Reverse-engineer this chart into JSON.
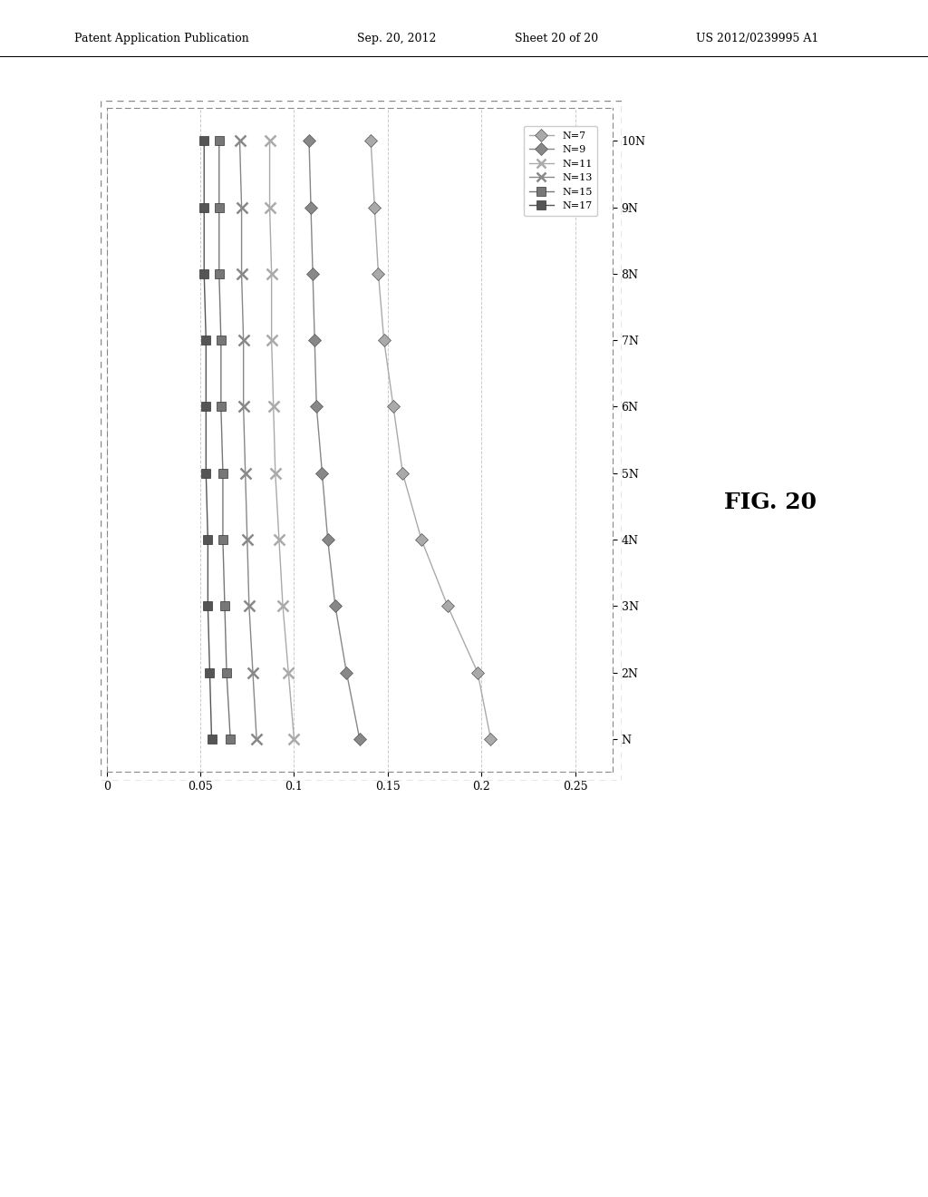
{
  "title_left": "Patent Application Publication",
  "title_date": "Sep. 20, 2012",
  "title_sheet": "Sheet 20 of 20",
  "title_patent": "US 2012/0239995 A1",
  "fig_label": "FIG. 20",
  "yticks": [
    0,
    0.05,
    0.1,
    0.15,
    0.2,
    0.25
  ],
  "ytick_labels": [
    "0",
    "0.05",
    "0.1",
    "0.15",
    "0.2",
    "0.25"
  ],
  "xtick_labels": [
    "N",
    "2N",
    "3N",
    "4N",
    "5N",
    "6N",
    "7N",
    "8N",
    "9N",
    "10N"
  ],
  "xtick_values": [
    1,
    2,
    3,
    4,
    5,
    6,
    7,
    8,
    9,
    10
  ],
  "series": [
    {
      "label": "N=7",
      "marker": "D",
      "color": "#888888",
      "data_x": [
        1,
        2,
        3,
        4,
        5,
        6,
        7,
        8,
        9,
        10
      ],
      "data_y": [
        0.205,
        0.198,
        0.182,
        0.168,
        0.158,
        0.153,
        0.148,
        0.145,
        0.143,
        0.141
      ]
    },
    {
      "label": "N=9",
      "marker": "D",
      "color": "#999999",
      "data_x": [
        1,
        2,
        3,
        4,
        5,
        6,
        7,
        8,
        9,
        10
      ],
      "data_y": [
        0.135,
        0.128,
        0.122,
        0.118,
        0.115,
        0.112,
        0.111,
        0.11,
        0.109,
        0.108
      ]
    },
    {
      "label": "N=11",
      "marker": "x",
      "color": "#aaaaaa",
      "data_x": [
        1,
        2,
        3,
        4,
        5,
        6,
        7,
        8,
        9,
        10
      ],
      "data_y": [
        0.1,
        0.097,
        0.094,
        0.092,
        0.09,
        0.089,
        0.088,
        0.088,
        0.087,
        0.087
      ]
    },
    {
      "label": "N=13",
      "marker": "x",
      "color": "#777777",
      "data_x": [
        1,
        2,
        3,
        4,
        5,
        6,
        7,
        8,
        9,
        10
      ],
      "data_y": [
        0.08,
        0.078,
        0.076,
        0.075,
        0.074,
        0.073,
        0.073,
        0.072,
        0.072,
        0.071
      ]
    },
    {
      "label": "N=15",
      "marker": "s",
      "color": "#666666",
      "data_x": [
        1,
        2,
        3,
        4,
        5,
        6,
        7,
        8,
        9,
        10
      ],
      "data_y": [
        0.066,
        0.064,
        0.063,
        0.062,
        0.062,
        0.061,
        0.061,
        0.06,
        0.06,
        0.06
      ]
    },
    {
      "label": "N=17",
      "marker": "s",
      "color": "#555555",
      "data_x": [
        1,
        2,
        3,
        4,
        5,
        6,
        7,
        8,
        9,
        10
      ],
      "data_y": [
        0.056,
        0.055,
        0.054,
        0.054,
        0.053,
        0.053,
        0.053,
        0.052,
        0.052,
        0.052
      ]
    }
  ],
  "ylim": [
    0,
    0.27
  ],
  "xlim": [
    0.5,
    10.5
  ],
  "background_color": "#ffffff",
  "gray_shades": [
    "#aaaaaa",
    "#888888",
    "#aaaaaa",
    "#888888",
    "#777777",
    "#555555"
  ],
  "markers_list": [
    "D",
    "D",
    "x",
    "x",
    "s",
    "s"
  ]
}
